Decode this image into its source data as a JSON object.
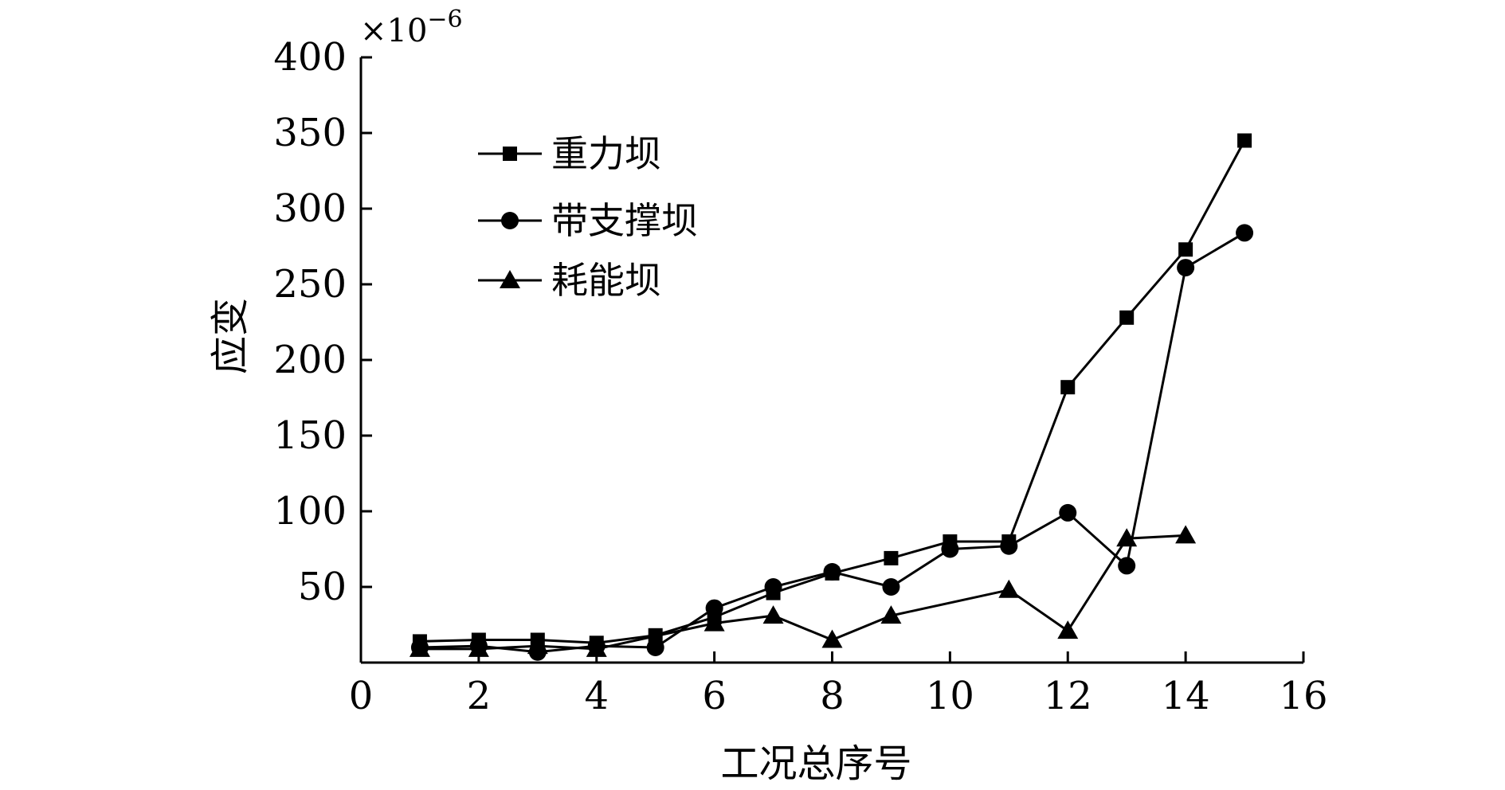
{
  "chart_data": {
    "type": "line",
    "title": "",
    "xlabel": "工况总序号",
    "ylabel": "应变",
    "y_scale_label": "×10",
    "y_scale_exponent": "−6",
    "xlim": [
      0,
      16
    ],
    "ylim": [
      0,
      400
    ],
    "x_ticks": [
      0,
      2,
      4,
      6,
      8,
      10,
      12,
      14,
      16
    ],
    "y_ticks": [
      50,
      100,
      150,
      200,
      250,
      300,
      350,
      400
    ],
    "grid": false,
    "legend_position": "top-left",
    "series": [
      {
        "name": "重力坝",
        "marker": "square",
        "x": [
          1,
          2,
          3,
          4,
          5,
          6,
          7,
          8,
          9,
          10,
          11,
          12,
          13,
          14,
          15
        ],
        "y": [
          14,
          15,
          15,
          13,
          18,
          30,
          46,
          59,
          69,
          80,
          80,
          182,
          228,
          273,
          345
        ]
      },
      {
        "name": "带支撑坝",
        "marker": "circle",
        "x": [
          1,
          2,
          3,
          4,
          5,
          6,
          7,
          8,
          9,
          10,
          11,
          12,
          13,
          14,
          15
        ],
        "y": [
          10,
          11,
          7,
          11,
          10,
          36,
          50,
          60,
          50,
          75,
          77,
          99,
          64,
          261,
          284
        ]
      },
      {
        "name": "耗能坝",
        "marker": "triangle",
        "x": [
          1,
          2,
          3,
          4,
          6,
          7,
          8,
          9,
          11,
          12,
          13,
          14
        ],
        "y": [
          9,
          9,
          11,
          9,
          26,
          31,
          15,
          31,
          48,
          21,
          82,
          84
        ]
      }
    ]
  }
}
